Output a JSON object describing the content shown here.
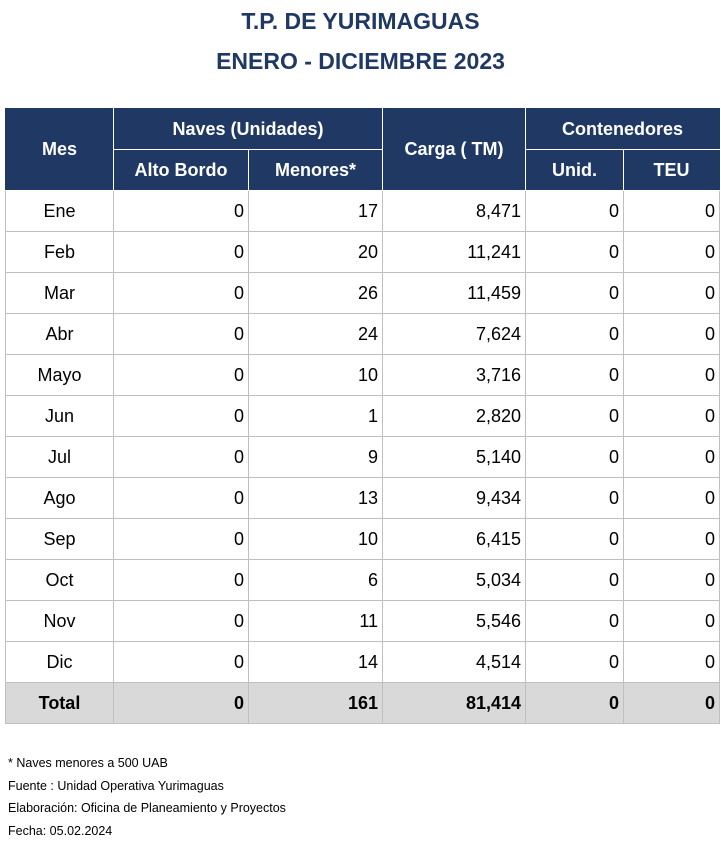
{
  "title_line1": "T.P. DE YURIMAGUAS",
  "title_line2": "ENERO - DICIEMBRE 2023",
  "headers": {
    "mes": "Mes",
    "naves": "Naves (Unidades)",
    "alto_bordo": "Alto Bordo",
    "menores": "Menores*",
    "carga": "Carga ( TM)",
    "contenedores": "Contenedores",
    "unid": "Unid.",
    "teu": "TEU"
  },
  "rows": [
    {
      "mes": "Ene",
      "alto_bordo": "0",
      "menores": "17",
      "carga": "8,471",
      "unid": "0",
      "teu": "0"
    },
    {
      "mes": "Feb",
      "alto_bordo": "0",
      "menores": "20",
      "carga": "11,241",
      "unid": "0",
      "teu": "0"
    },
    {
      "mes": "Mar",
      "alto_bordo": "0",
      "menores": "26",
      "carga": "11,459",
      "unid": "0",
      "teu": "0"
    },
    {
      "mes": "Abr",
      "alto_bordo": "0",
      "menores": "24",
      "carga": "7,624",
      "unid": "0",
      "teu": "0"
    },
    {
      "mes": "Mayo",
      "alto_bordo": "0",
      "menores": "10",
      "carga": "3,716",
      "unid": "0",
      "teu": "0"
    },
    {
      "mes": "Jun",
      "alto_bordo": "0",
      "menores": "1",
      "carga": "2,820",
      "unid": "0",
      "teu": "0"
    },
    {
      "mes": "Jul",
      "alto_bordo": "0",
      "menores": "9",
      "carga": "5,140",
      "unid": "0",
      "teu": "0"
    },
    {
      "mes": "Ago",
      "alto_bordo": "0",
      "menores": "13",
      "carga": "9,434",
      "unid": "0",
      "teu": "0"
    },
    {
      "mes": "Sep",
      "alto_bordo": "0",
      "menores": "10",
      "carga": "6,415",
      "unid": "0",
      "teu": "0"
    },
    {
      "mes": "Oct",
      "alto_bordo": "0",
      "menores": "6",
      "carga": "5,034",
      "unid": "0",
      "teu": "0"
    },
    {
      "mes": "Nov",
      "alto_bordo": "0",
      "menores": "11",
      "carga": "5,546",
      "unid": "0",
      "teu": "0"
    },
    {
      "mes": "Dic",
      "alto_bordo": "0",
      "menores": "14",
      "carga": "4,514",
      "unid": "0",
      "teu": "0"
    }
  ],
  "total": {
    "mes": "Total",
    "alto_bordo": "0",
    "menores": "161",
    "carga": "81,414",
    "unid": "0",
    "teu": "0"
  },
  "notes": [
    "* Naves menores a 500 UAB",
    "Fuente : Unidad Operativa Yurimaguas",
    "Elaboración: Oficina de Planeamiento y Proyectos",
    "Fecha: 05.02.2024"
  ]
}
